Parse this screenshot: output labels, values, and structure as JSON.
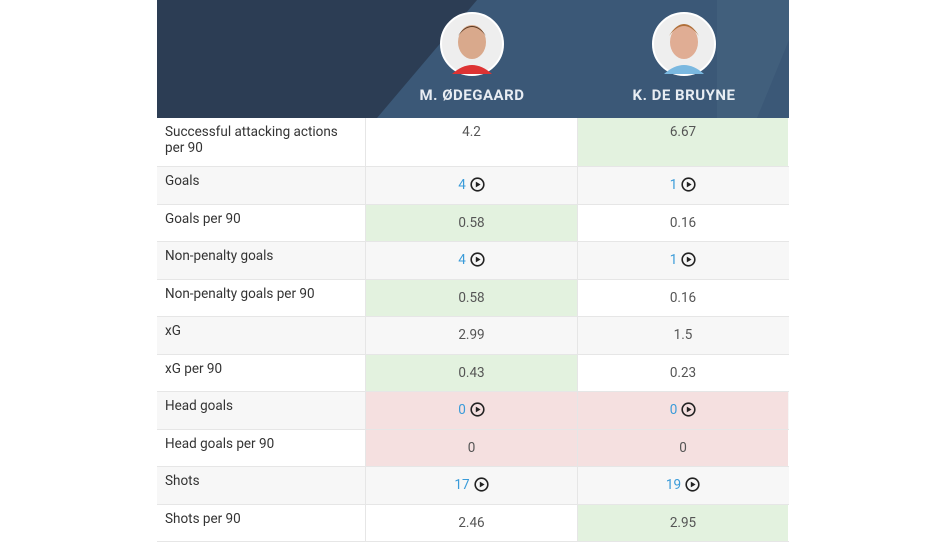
{
  "players": [
    {
      "name": "M. ØDEGAARD"
    },
    {
      "name": "K. DE BRUYNE"
    }
  ],
  "rows": [
    {
      "label": "Successful attacking actions per 90",
      "cells": [
        {
          "value": 4.2
        },
        {
          "value": 6.67,
          "fill": "#e3f2df"
        }
      ]
    },
    {
      "label": "Goals",
      "cells": [
        {
          "value": 4,
          "video": true
        },
        {
          "value": 1,
          "video": true
        }
      ]
    },
    {
      "label": "Goals per 90",
      "cells": [
        {
          "value": 0.58,
          "fill": "#e3f2df"
        },
        {
          "value": 0.16
        }
      ]
    },
    {
      "label": "Non-penalty goals",
      "cells": [
        {
          "value": 4,
          "video": true
        },
        {
          "value": 1,
          "video": true
        }
      ]
    },
    {
      "label": "Non-penalty goals per 90",
      "cells": [
        {
          "value": 0.58,
          "fill": "#e3f2df"
        },
        {
          "value": 0.16
        }
      ]
    },
    {
      "label": "xG",
      "cells": [
        {
          "value": 2.99
        },
        {
          "value": 1.5
        }
      ]
    },
    {
      "label": "xG per 90",
      "cells": [
        {
          "value": 0.43,
          "fill": "#e3f2df"
        },
        {
          "value": 0.23
        }
      ]
    },
    {
      "label": "Head goals",
      "cells": [
        {
          "value": 0,
          "video": true,
          "fill": "#f5e0e0"
        },
        {
          "value": 0,
          "video": true,
          "fill": "#f5e0e0"
        }
      ]
    },
    {
      "label": "Head goals per 90",
      "cells": [
        {
          "value": 0,
          "fill": "#f5e0e0"
        },
        {
          "value": 0,
          "fill": "#f5e0e0"
        }
      ]
    },
    {
      "label": "Shots",
      "cells": [
        {
          "value": 17,
          "video": true
        },
        {
          "value": 19,
          "video": true
        }
      ]
    },
    {
      "label": "Shots per 90",
      "cells": [
        {
          "value": 2.46
        },
        {
          "value": 2.95,
          "fill": "#e3f2df"
        }
      ]
    }
  ]
}
